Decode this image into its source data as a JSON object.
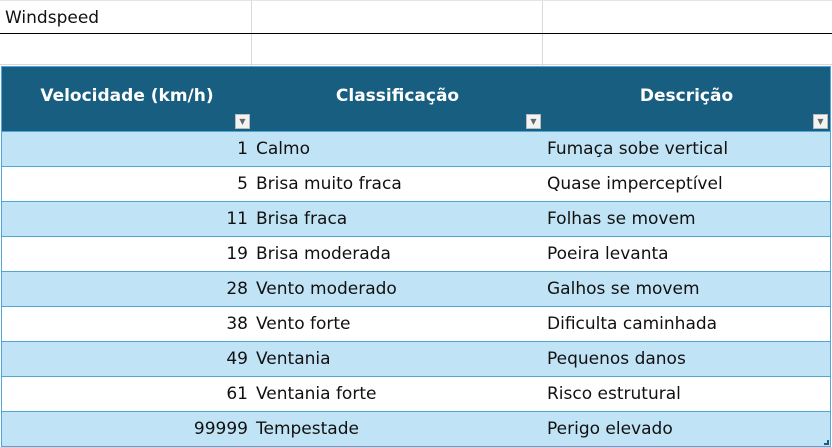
{
  "title_cell": "Windspeed",
  "table": {
    "headers": [
      "Velocidade (km/h)",
      "Classificação",
      "Descrição"
    ],
    "rows": [
      [
        "1",
        "Calmo",
        "Fumaça sobe vertical"
      ],
      [
        "5",
        "Brisa muito fraca",
        "Quase imperceptível"
      ],
      [
        "11",
        "Brisa fraca",
        "Folhas se movem"
      ],
      [
        "19",
        "Brisa moderada",
        "Poeira levanta"
      ],
      [
        "28",
        "Vento moderado",
        "Galhos se movem"
      ],
      [
        "38",
        "Vento forte",
        "Dificulta caminhada"
      ],
      [
        "49",
        "Ventania",
        "Pequenos danos"
      ],
      [
        "61",
        "Ventania forte",
        "Risco estrutural"
      ],
      [
        "99999",
        "Tempestade",
        "Perigo elevado"
      ]
    ]
  },
  "colors": {
    "header": "#175e80",
    "band": "#c0e4f5",
    "border": "#4ea7d8"
  },
  "icons": {
    "filter": "filter-dropdown-icon",
    "cursor": "cell-select-cursor-icon"
  }
}
